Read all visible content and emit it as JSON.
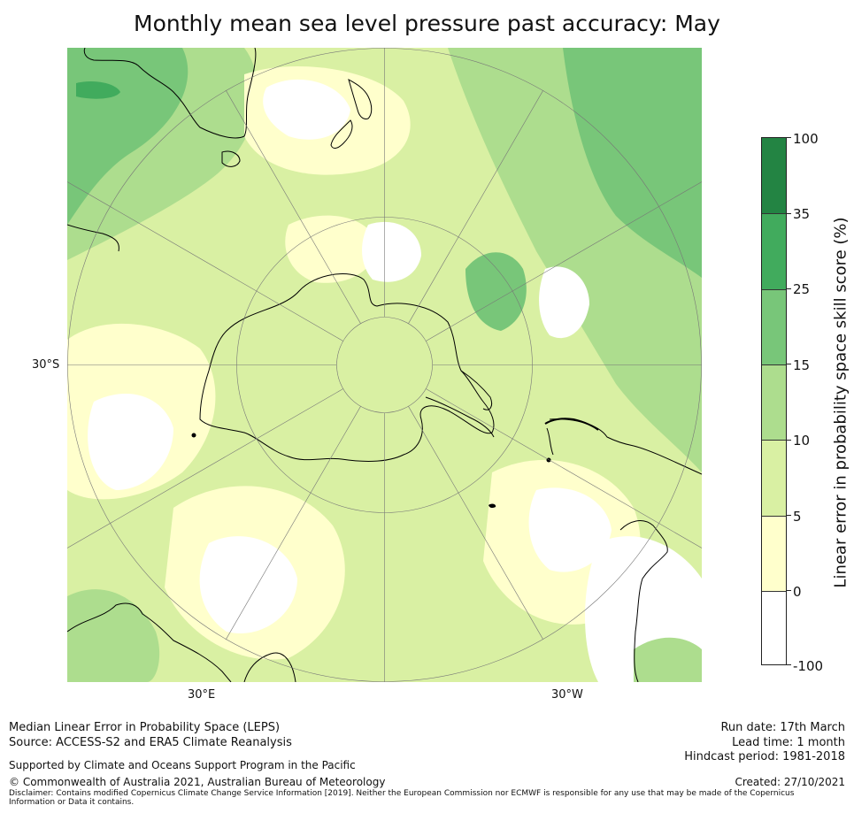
{
  "title": "Monthly mean sea level pressure past accuracy: May",
  "map": {
    "projection": "south-polar-stereographic",
    "lat_labels": [
      "30°S"
    ],
    "lon_labels": [
      "30°E",
      "30°W"
    ],
    "regions": [
      "Antarctica",
      "Australia",
      "New Zealand",
      "South America",
      "Africa"
    ]
  },
  "colorbar": {
    "label": "Linear error in probability space skill score (%)",
    "ticks": [
      "100",
      "35",
      "25",
      "15",
      "10",
      "5",
      "0",
      "-100"
    ],
    "bins": [
      {
        "range": "35 to 100",
        "color": "#238443"
      },
      {
        "range": "25 to 35",
        "color": "#41ab5d"
      },
      {
        "range": "15 to 25",
        "color": "#78c679"
      },
      {
        "range": "10 to 15",
        "color": "#addd8e"
      },
      {
        "range": "5 to 10",
        "color": "#d9f0a3"
      },
      {
        "range": "0 to 5",
        "color": "#ffffcc"
      },
      {
        "range": "-100 to 0",
        "color": "#ffffff"
      }
    ]
  },
  "footer": {
    "line1": "Median Linear Error in Probability Space (LEPS)",
    "line2": "Source: ACCESS-S2 and ERA5 Climate Reanalysis",
    "support": "Supported by Climate and Oceans Support Program in the Pacific",
    "copyright": "© Commonwealth of Australia 2021, Australian Bureau of Meteorology",
    "disclaimer": "Disclaimer: Contains modified Copernicus Climate Change Service Information [2019]. Neither the European Commission nor ECMWF is responsible for any use that may be made of the Copernicus Information or Data it contains.",
    "run_date": "Run date: 17th March",
    "lead_time": "Lead time: 1 month",
    "hindcast": "Hindcast period: 1981-2018",
    "created": "Created: 27/10/2021"
  }
}
